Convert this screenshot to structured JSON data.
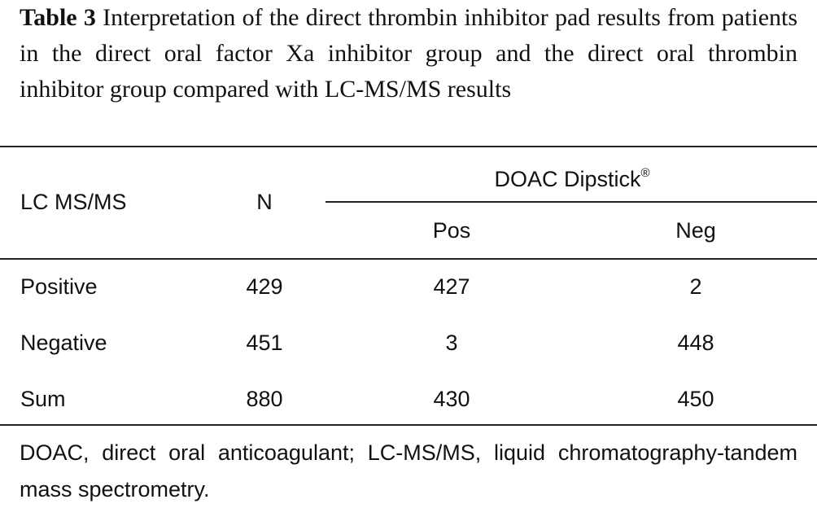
{
  "caption": {
    "label": "Table 3",
    "text": "Interpretation of the direct thrombin inhibitor pad results from patients in the direct oral factor Xa inhibitor group and the direct oral thrombin inhibitor group compared with LC-MS/MS results"
  },
  "table": {
    "headers": {
      "row_label": "LC MS/MS",
      "n": "N",
      "group": {
        "text": "DOAC Dipstick",
        "mark": "®"
      },
      "sub": [
        "Pos",
        "Neg"
      ]
    },
    "rows": [
      [
        "Positive",
        "429",
        "427",
        "2"
      ],
      [
        "Negative",
        "451",
        "3",
        "448"
      ],
      [
        "Sum",
        "880",
        "430",
        "450"
      ]
    ]
  },
  "footnote": "DOAC, direct oral anticoagulant; LC-MS/MS, liquid chromatography-tandem mass spectrometry."
}
